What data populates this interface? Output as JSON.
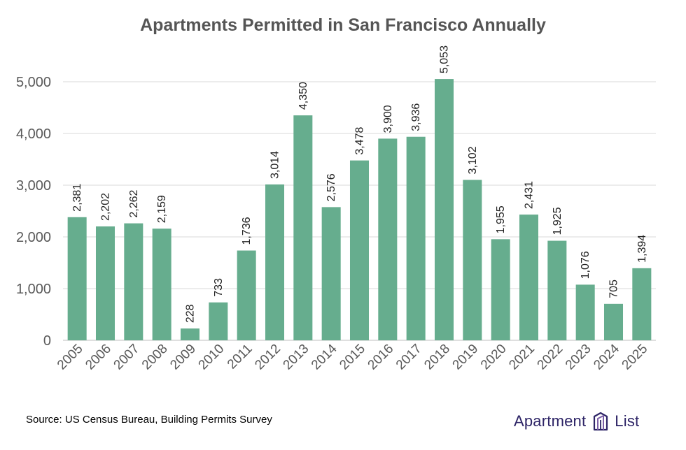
{
  "chart_data": {
    "type": "bar",
    "title": "Apartments Permitted in San Francisco Annually",
    "xlabel": "",
    "ylabel": "",
    "categories": [
      "2005",
      "2006",
      "2007",
      "2008",
      "2009",
      "2010",
      "2011",
      "2012",
      "2013",
      "2014",
      "2015",
      "2016",
      "2017",
      "2018",
      "2019",
      "2020",
      "2021",
      "2022",
      "2023",
      "2024",
      "2025"
    ],
    "values": [
      2381,
      2202,
      2262,
      2159,
      228,
      733,
      1736,
      3014,
      4350,
      2576,
      3478,
      3900,
      3936,
      5053,
      3102,
      1955,
      2431,
      1925,
      1076,
      705,
      1394
    ],
    "value_labels": [
      "2,381",
      "2,202",
      "2,262",
      "2,159",
      "228",
      "733",
      "1,736",
      "3,014",
      "4,350",
      "2,576",
      "3,478",
      "3,900",
      "3,936",
      "5,053",
      "3,102",
      "1,955",
      "2,431",
      "1,925",
      "1,076",
      "705",
      "1,394"
    ],
    "ylim": [
      0,
      5000
    ],
    "y_ticks": [
      0,
      1000,
      2000,
      3000,
      4000,
      5000
    ],
    "y_tick_labels": [
      "0",
      "1,000",
      "2,000",
      "3,000",
      "4,000",
      "5,000"
    ],
    "grid": true,
    "bar_color": "#66ad8e",
    "legend": "none"
  },
  "source": "Source: US Census Bureau, Building Permits Survey",
  "brand": {
    "word1": "Apartment",
    "word2": "List",
    "logo_icon": "apartment-list-building-icon",
    "color": "#2d2466",
    "accent": "#7b5ea7"
  }
}
